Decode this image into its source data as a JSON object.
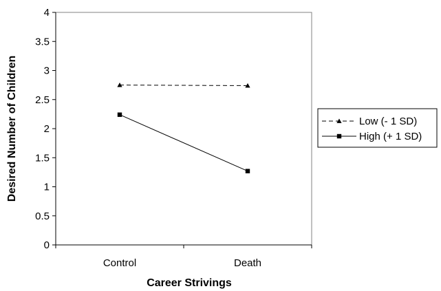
{
  "chart_data": {
    "type": "line",
    "title": "",
    "xlabel": "Career Strivings",
    "ylabel": "Desired Number of Children",
    "categories": [
      "Control",
      "Death"
    ],
    "ylim": [
      0,
      4
    ],
    "yticks": [
      "0",
      "0.5",
      "1",
      "1.5",
      "2",
      "2.5",
      "3",
      "3.5",
      "4"
    ],
    "grid": false,
    "legend_position": "right",
    "series": [
      {
        "name": "Low (- 1 SD)",
        "values": [
          2.75,
          2.74
        ],
        "line_style": "dashed",
        "marker": "triangle",
        "color": "#000000"
      },
      {
        "name": "High (+ 1 SD)",
        "values": [
          2.24,
          1.27
        ],
        "line_style": "solid",
        "marker": "square",
        "color": "#000000"
      }
    ]
  }
}
